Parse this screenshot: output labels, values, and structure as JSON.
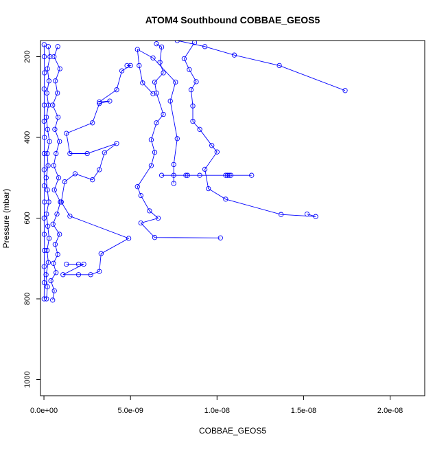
{
  "chart_data": {
    "type": "scatter",
    "title": "ATOM4 Southbound COBBAE_GEOS5",
    "xlabel": "COBBAE_GEOS5",
    "ylabel": "Pressure (mbar)",
    "xlim": [
      -2e-10,
      2.2e-08
    ],
    "ylim": [
      1040,
      160
    ],
    "y_reversed": true,
    "x_ticks": [
      0,
      5e-09,
      1e-08,
      1.5e-08,
      2e-08
    ],
    "x_tick_labels": [
      "0.0e+00",
      "5.0e-09",
      "1.0e-08",
      "1.5e-08",
      "2.0e-08"
    ],
    "y_ticks": [
      200,
      400,
      600,
      800,
      1000
    ],
    "y_tick_labels": [
      "200",
      "400",
      "600",
      "800",
      "1000"
    ],
    "color": "#0000ff",
    "marker": "open-circle",
    "connected": true,
    "series": [
      {
        "values": [
          [
            1e-11,
            800
          ],
          [
            2e-11,
            760
          ],
          [
            1e-11,
            720
          ],
          [
            3e-11,
            680
          ],
          [
            2e-11,
            640
          ],
          [
            1e-11,
            600
          ],
          [
            3e-11,
            560
          ],
          [
            2e-11,
            520
          ],
          [
            1e-11,
            480
          ],
          [
            2e-11,
            440
          ],
          [
            3e-11,
            400
          ],
          [
            1e-11,
            360
          ],
          [
            2e-11,
            320
          ],
          [
            1e-11,
            280
          ],
          [
            3e-11,
            240
          ],
          [
            2e-11,
            200
          ],
          [
            1e-11,
            170
          ]
        ]
      },
      {
        "values": [
          [
            1.5e-10,
            800
          ],
          [
            2e-10,
            770
          ],
          [
            1.2e-10,
            740
          ],
          [
            2.5e-10,
            710
          ],
          [
            1.8e-10,
            680
          ],
          [
            3e-10,
            650
          ],
          [
            2.2e-10,
            620
          ],
          [
            1.5e-10,
            590
          ],
          [
            2.8e-10,
            560
          ],
          [
            2e-10,
            530
          ],
          [
            1.3e-10,
            500
          ],
          [
            2.4e-10,
            470
          ],
          [
            1.9e-10,
            440
          ],
          [
            3.2e-10,
            410
          ],
          [
            2.1e-10,
            380
          ],
          [
            1.4e-10,
            350
          ],
          [
            2.6e-10,
            320
          ],
          [
            1.7e-10,
            290
          ],
          [
            2.9e-10,
            260
          ],
          [
            2e-10,
            230
          ],
          [
            3.5e-10,
            200
          ],
          [
            2.5e-10,
            175
          ]
        ]
      },
      {
        "values": [
          [
            5e-10,
            803
          ],
          [
            6e-10,
            780
          ],
          [
            4e-10,
            755
          ],
          [
            7e-10,
            735
          ],
          [
            5.5e-10,
            712
          ],
          [
            8e-10,
            690
          ],
          [
            6.5e-10,
            665
          ],
          [
            9e-10,
            640
          ],
          [
            5.2e-10,
            615
          ],
          [
            7.5e-10,
            590
          ],
          [
            9.5e-10,
            560
          ],
          [
            6e-10,
            530
          ],
          [
            8.5e-10,
            500
          ],
          [
            5.6e-10,
            470
          ],
          [
            7e-10,
            440
          ],
          [
            9e-10,
            410
          ],
          [
            6.3e-10,
            380
          ],
          [
            8.2e-10,
            350
          ],
          [
            5e-10,
            320
          ],
          [
            7.8e-10,
            290
          ],
          [
            6.6e-10,
            260
          ],
          [
            9.2e-10,
            230
          ],
          [
            5.8e-10,
            200
          ],
          [
            8e-10,
            175
          ]
        ]
      },
      {
        "values": [
          [
            1.3e-09,
            714
          ],
          [
            2e-09,
            714
          ],
          [
            2.3e-09,
            714
          ],
          [
            1.1e-09,
            740
          ],
          [
            2e-09,
            740
          ],
          [
            2.7e-09,
            740
          ],
          [
            3.2e-09,
            732
          ],
          [
            3.3e-09,
            688
          ],
          [
            4.9e-09,
            650
          ],
          [
            1.5e-09,
            595
          ],
          [
            1e-09,
            560
          ],
          [
            1.2e-09,
            510
          ],
          [
            1.8e-09,
            490
          ],
          [
            2.8e-09,
            505
          ],
          [
            3.2e-09,
            480
          ],
          [
            3.5e-09,
            438
          ],
          [
            4.2e-09,
            415
          ],
          [
            2.5e-09,
            440
          ],
          [
            1.5e-09,
            440
          ],
          [
            1.3e-09,
            390
          ],
          [
            2.8e-09,
            364
          ],
          [
            3.2e-09,
            316
          ],
          [
            3.8e-09,
            310
          ],
          [
            3.2e-09,
            312
          ],
          [
            4.2e-09,
            282
          ],
          [
            4.5e-09,
            235
          ],
          [
            5e-09,
            222
          ],
          [
            4.8e-09,
            222
          ]
        ]
      },
      {
        "values": [
          [
            1.02e-08,
            649
          ],
          [
            6.4e-09,
            648
          ],
          [
            5.6e-09,
            612
          ],
          [
            6.6e-09,
            600
          ],
          [
            6.1e-09,
            582
          ],
          [
            5.6e-09,
            544
          ],
          [
            5.4e-09,
            522
          ],
          [
            6.2e-09,
            470
          ],
          [
            6.4e-09,
            437
          ],
          [
            6.2e-09,
            406
          ],
          [
            6.5e-09,
            364
          ],
          [
            6.9e-09,
            343
          ],
          [
            6.5e-09,
            290
          ],
          [
            6.4e-09,
            263
          ],
          [
            6.9e-09,
            240
          ],
          [
            6.7e-09,
            214
          ],
          [
            6.8e-09,
            176
          ],
          [
            6.5e-09,
            168
          ]
        ]
      },
      {
        "values": [
          [
            6.8e-09,
            494
          ],
          [
            7.5e-09,
            494
          ],
          [
            8.2e-09,
            494
          ],
          [
            8.3e-09,
            494
          ],
          [
            9e-09,
            494
          ],
          [
            1.05e-08,
            494
          ],
          [
            1.06e-08,
            494
          ],
          [
            1.07e-08,
            494
          ],
          [
            1.08e-08,
            494
          ],
          [
            1.2e-08,
            494
          ]
        ]
      },
      {
        "values": [
          [
            1.52e-08,
            590
          ],
          [
            1.57e-08,
            596
          ],
          [
            1.37e-08,
            591
          ],
          [
            1.05e-08,
            553
          ],
          [
            9.5e-09,
            527
          ],
          [
            9.3e-09,
            479
          ],
          [
            1e-08,
            436
          ],
          [
            9.7e-09,
            420
          ],
          [
            9e-09,
            380
          ],
          [
            8.6e-09,
            360
          ],
          [
            8.6e-09,
            322
          ],
          [
            8.5e-09,
            282
          ],
          [
            8.8e-09,
            262
          ],
          [
            8.4e-09,
            232
          ],
          [
            8.1e-09,
            205
          ],
          [
            8.7e-09,
            165
          ]
        ]
      },
      {
        "values": [
          [
            1.74e-08,
            284
          ],
          [
            1.36e-08,
            222
          ],
          [
            1.1e-08,
            196
          ],
          [
            9.3e-09,
            175
          ],
          [
            7.7e-09,
            160
          ]
        ]
      },
      {
        "values": [
          [
            7.5e-09,
            514
          ],
          [
            7.5e-09,
            467
          ],
          [
            7.7e-09,
            403
          ],
          [
            7.3e-09,
            310
          ],
          [
            7.6e-09,
            263
          ],
          [
            6.3e-09,
            203
          ],
          [
            5.4e-09,
            182
          ],
          [
            5.5e-09,
            222
          ],
          [
            5.7e-09,
            265
          ],
          [
            6.3e-09,
            292
          ]
        ]
      }
    ]
  }
}
